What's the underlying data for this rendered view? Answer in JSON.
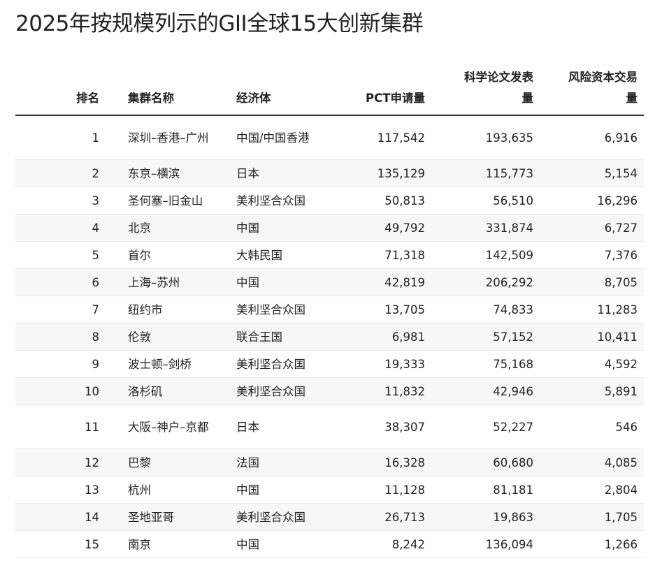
{
  "title": "2025年按规模列示的GII全球15大创新集群",
  "headers": [
    "排名",
    "集群名称",
    "经济体",
    "PCT申请量",
    "科学论文发表量",
    "风险资本交易量"
  ],
  "rows": [
    [
      "1",
      "深圳–香港–广州",
      "中国/中国香港",
      "117,542",
      "193,635",
      "6,916"
    ],
    [
      "2",
      "东京–横滨",
      "日本",
      "135,129",
      "115,773",
      "5,154"
    ],
    [
      "3",
      "圣何塞–旧金山",
      "美利坚合众国",
      "50,813",
      "56,510",
      "16,296"
    ],
    [
      "4",
      "北京",
      "中国",
      "49,792",
      "331,874",
      "6,727"
    ],
    [
      "5",
      "首尔",
      "大韩民国",
      "71,318",
      "142,509",
      "7,376"
    ],
    [
      "6",
      "上海–苏州",
      "中国",
      "42,819",
      "206,292",
      "8,705"
    ],
    [
      "7",
      "纽约市",
      "美利坚合众国",
      "13,705",
      "74,833",
      "11,283"
    ],
    [
      "8",
      "伦敦",
      "联合王国",
      "6,981",
      "57,152",
      "10,411"
    ],
    [
      "9",
      "波士顿–剑桥",
      "美利坚合众国",
      "19,333",
      "75,168",
      "4,592"
    ],
    [
      "10",
      "洛杉矶",
      "美利坚合众国",
      "11,832",
      "42,946",
      "5,891"
    ],
    [
      "11",
      "大阪–神户–京都",
      "日本",
      "38,307",
      "52,227",
      "546"
    ],
    [
      "12",
      "巴黎",
      "法国",
      "16,328",
      "60,680",
      "4,085"
    ],
    [
      "13",
      "杭州",
      "中国",
      "11,128",
      "81,181",
      "2,804"
    ],
    [
      "14",
      "圣地亚哥",
      "美利坚合众国",
      "26,713",
      "19,863",
      "1,705"
    ],
    [
      "15",
      "南京",
      "中国",
      "8,242",
      "136,094",
      "1,266"
    ]
  ]
}
